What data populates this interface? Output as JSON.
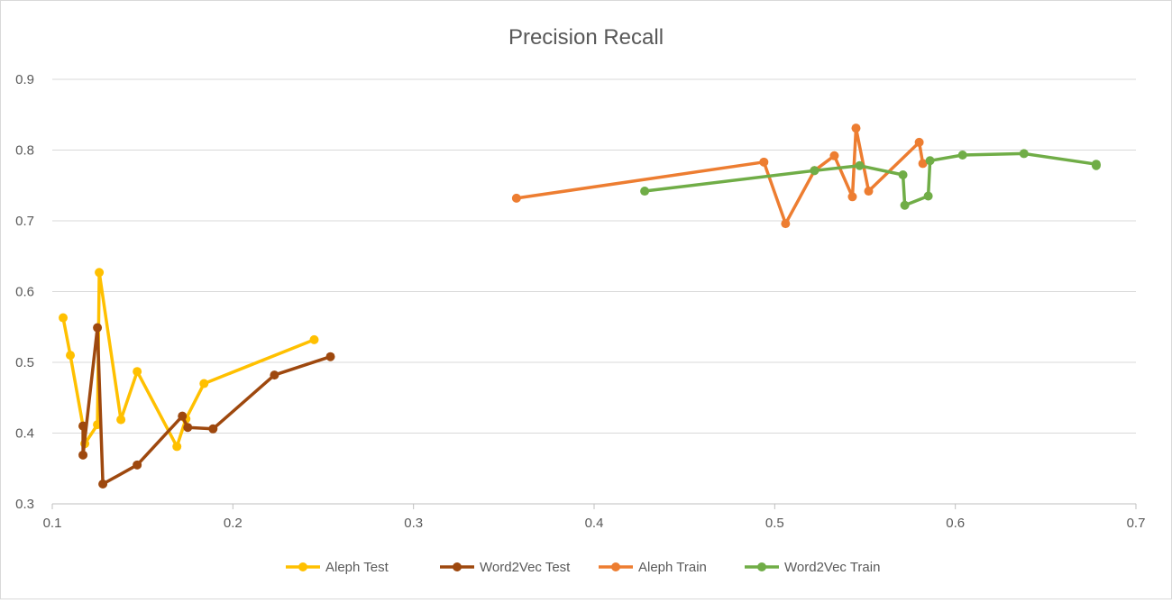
{
  "chart_data": {
    "type": "line",
    "title": "Precision Recall",
    "xlabel": "",
    "ylabel": "",
    "xlim": [
      0.1,
      0.7
    ],
    "ylim": [
      0.3,
      0.9
    ],
    "x_ticks": [
      "0.1",
      "0.2",
      "0.3",
      "0.4",
      "0.5",
      "0.6",
      "0.7"
    ],
    "y_ticks": [
      "0.3",
      "0.4",
      "0.5",
      "0.6",
      "0.7",
      "0.8",
      "0.9"
    ],
    "grid": "horizontal",
    "legend_position": "bottom",
    "series": [
      {
        "name": "Aleph Test",
        "color": "#ffc000",
        "points": [
          [
            0.106,
            0.563
          ],
          [
            0.11,
            0.51
          ],
          [
            0.117,
            0.41
          ],
          [
            0.118,
            0.385
          ],
          [
            0.125,
            0.412
          ],
          [
            0.126,
            0.627
          ],
          [
            0.138,
            0.419
          ],
          [
            0.147,
            0.487
          ],
          [
            0.169,
            0.381
          ],
          [
            0.174,
            0.42
          ],
          [
            0.184,
            0.47
          ],
          [
            0.245,
            0.532
          ]
        ]
      },
      {
        "name": "Word2Vec Test",
        "color": "#9e480e",
        "points": [
          [
            0.117,
            0.41
          ],
          [
            0.117,
            0.369
          ],
          [
            0.125,
            0.549
          ],
          [
            0.128,
            0.328
          ],
          [
            0.147,
            0.355
          ],
          [
            0.172,
            0.424
          ],
          [
            0.175,
            0.408
          ],
          [
            0.189,
            0.406
          ],
          [
            0.223,
            0.482
          ],
          [
            0.254,
            0.508
          ]
        ]
      },
      {
        "name": "Aleph Train",
        "color": "#ed7d31",
        "points": [
          [
            0.357,
            0.732
          ],
          [
            0.494,
            0.783
          ],
          [
            0.506,
            0.696
          ],
          [
            0.522,
            0.771
          ],
          [
            0.533,
            0.792
          ],
          [
            0.543,
            0.734
          ],
          [
            0.545,
            0.831
          ],
          [
            0.552,
            0.742
          ],
          [
            0.58,
            0.811
          ],
          [
            0.582,
            0.781
          ]
        ]
      },
      {
        "name": "Word2Vec Train",
        "color": "#70ad47",
        "points": [
          [
            0.428,
            0.742
          ],
          [
            0.522,
            0.771
          ],
          [
            0.547,
            0.778
          ],
          [
            0.571,
            0.765
          ],
          [
            0.572,
            0.722
          ],
          [
            0.585,
            0.735
          ],
          [
            0.586,
            0.785
          ],
          [
            0.604,
            0.793
          ],
          [
            0.638,
            0.795
          ],
          [
            0.678,
            0.78
          ],
          [
            0.678,
            0.778
          ]
        ]
      }
    ]
  }
}
